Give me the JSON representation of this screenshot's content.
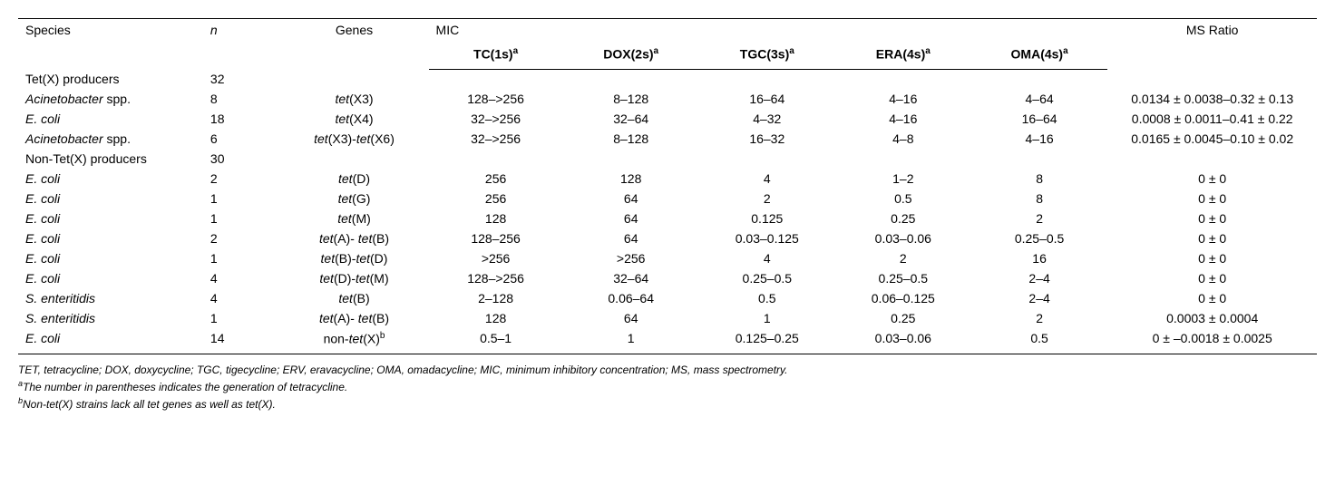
{
  "header": {
    "species": "Species",
    "n": "n",
    "genes": "Genes",
    "mic": "MIC",
    "tc": "TC(1s)",
    "dox": "DOX(2s)",
    "tgc": "TGC(3s)",
    "era": "ERA(4s)",
    "oma": "OMA(4s)",
    "sup_a": "a",
    "ms": "MS Ratio"
  },
  "rows": [
    {
      "species_pre": "Tet(X) producers",
      "species_it": "",
      "species_post": "",
      "n": "32",
      "genes_pre": "",
      "genes_it": "",
      "genes_post": "",
      "tc": "",
      "dox": "",
      "tgc": "",
      "era": "",
      "oma": "",
      "ms": ""
    },
    {
      "species_pre": "",
      "species_it": "Acinetobacter",
      "species_post": " spp.",
      "n": "8",
      "genes_pre": "",
      "genes_it": "tet",
      "genes_post": "(X3)",
      "tc": "128–>256",
      "dox": "8–128",
      "tgc": "16–64",
      "era": "4–16",
      "oma": "4–64",
      "ms": "0.0134 ± 0.0038–0.32 ± 0.13"
    },
    {
      "species_pre": "",
      "species_it": "E. coli",
      "species_post": "",
      "n": "18",
      "genes_pre": "",
      "genes_it": "tet",
      "genes_post": "(X4)",
      "tc": "32–>256",
      "dox": "32–64",
      "tgc": "4–32",
      "era": "4–16",
      "oma": "16–64",
      "ms": "0.0008 ± 0.0011–0.41 ± 0.22"
    },
    {
      "species_pre": "",
      "species_it": "Acinetobacter",
      "species_post": " spp.",
      "n": "6",
      "genes_pre": "",
      "genes_it": "tet",
      "genes_post": "(X3)-",
      "genes_it2": "tet",
      "genes_post2": "(X6)",
      "tc": "32–>256",
      "dox": "8–128",
      "tgc": "16–32",
      "era": "4–8",
      "oma": "4–16",
      "ms": "0.0165 ± 0.0045–0.10 ± 0.02"
    },
    {
      "species_pre": "Non-Tet(X) producers",
      "species_it": "",
      "species_post": "",
      "n": "30",
      "genes_pre": "",
      "genes_it": "",
      "genes_post": "",
      "tc": "",
      "dox": "",
      "tgc": "",
      "era": "",
      "oma": "",
      "ms": ""
    },
    {
      "species_pre": "",
      "species_it": "E. coli",
      "species_post": "",
      "n": "2",
      "genes_pre": "",
      "genes_it": "tet",
      "genes_post": "(D)",
      "tc": "256",
      "dox": "128",
      "tgc": "4",
      "era": "1–2",
      "oma": "8",
      "ms": "0 ± 0"
    },
    {
      "species_pre": "",
      "species_it": "E. coli",
      "species_post": "",
      "n": "1",
      "genes_pre": "",
      "genes_it": "tet",
      "genes_post": "(G)",
      "tc": "256",
      "dox": "64",
      "tgc": "2",
      "era": "0.5",
      "oma": "8",
      "ms": "0 ± 0"
    },
    {
      "species_pre": "",
      "species_it": "E. coli",
      "species_post": "",
      "n": "1",
      "genes_pre": "",
      "genes_it": "tet",
      "genes_post": "(M)",
      "tc": "128",
      "dox": "64",
      "tgc": "0.125",
      "era": "0.25",
      "oma": "2",
      "ms": "0 ± 0"
    },
    {
      "species_pre": "",
      "species_it": "E. coli",
      "species_post": "",
      "n": "2",
      "genes_pre": "",
      "genes_it": "tet",
      "genes_post": "(A)- ",
      "genes_it2": "tet",
      "genes_post2": "(B)",
      "tc": "128–256",
      "dox": "64",
      "tgc": "0.03–0.125",
      "era": "0.03–0.06",
      "oma": "0.25–0.5",
      "ms": "0 ± 0"
    },
    {
      "species_pre": "",
      "species_it": "E. coli",
      "species_post": "",
      "n": "1",
      "genes_pre": "",
      "genes_it": "tet",
      "genes_post": "(B)-",
      "genes_it2": "tet",
      "genes_post2": "(D)",
      "tc": ">256",
      "dox": ">256",
      "tgc": "4",
      "era": "2",
      "oma": "16",
      "ms": "0 ± 0"
    },
    {
      "species_pre": "",
      "species_it": "E. coli",
      "species_post": "",
      "n": "4",
      "genes_pre": "",
      "genes_it": "tet",
      "genes_post": "(D)-",
      "genes_it2": "tet",
      "genes_post2": "(M)",
      "tc": "128–>256",
      "dox": "32–64",
      "tgc": "0.25–0.5",
      "era": "0.25–0.5",
      "oma": "2–4",
      "ms": "0 ± 0"
    },
    {
      "species_pre": "",
      "species_it": "S. enteritidis",
      "species_post": "",
      "n": "4",
      "genes_pre": "",
      "genes_it": "tet",
      "genes_post": "(B)",
      "tc": "2–128",
      "dox": "0.06–64",
      "tgc": "0.5",
      "era": "0.06–0.125",
      "oma": "2–4",
      "ms": "0 ± 0"
    },
    {
      "species_pre": "",
      "species_it": "S. enteritidis",
      "species_post": "",
      "n": "1",
      "genes_pre": "",
      "genes_it": "tet",
      "genes_post": "(A)- ",
      "genes_it2": "tet",
      "genes_post2": "(B)",
      "tc": "128",
      "dox": "64",
      "tgc": "1",
      "era": "0.25",
      "oma": "2",
      "ms": "0.0003 ± 0.0004"
    },
    {
      "species_pre": "",
      "species_it": "E. coli",
      "species_post": "",
      "n": "14",
      "genes_pre": "non-",
      "genes_it": "tet",
      "genes_post": "(X)",
      "genes_sup": "b",
      "tc": "0.5–1",
      "dox": "1",
      "tgc": "0.125–0.25",
      "era": "0.03–0.06",
      "oma": "0.5",
      "ms": "0 ± –0.0018 ± 0.0025"
    }
  ],
  "footnotes": {
    "abbrev": "TET, tetracycline; DOX, doxycycline; TGC, tigecycline; ERV, eravacycline; OMA, omadacycline; MIC, minimum inhibitory concentration; MS, mass spectrometry.",
    "a_sup": "a",
    "a_text": "The number in parentheses indicates the generation of tetracycline.",
    "b_sup": "b",
    "b_text": "Non-tet(X) strains lack all tet genes as well as tet(X)."
  }
}
